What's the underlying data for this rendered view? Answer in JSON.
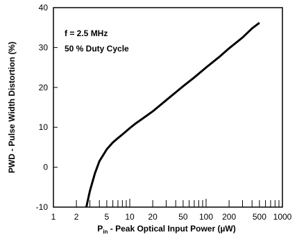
{
  "chart_data": {
    "type": "line",
    "title": "",
    "xlabel_main": "P",
    "xlabel_sub": "in",
    "xlabel_rest": " - Peak Optical Input Power (µW)",
    "ylabel": "PWD - Pulse Width Distortion (%)",
    "x_scale": "log",
    "xlim": [
      1,
      1000
    ],
    "ylim": [
      -10,
      40
    ],
    "x_ticks": [
      1,
      2,
      5,
      10,
      20,
      50,
      100,
      200,
      500,
      1000
    ],
    "x_tick_labels": [
      "1",
      "2",
      "5",
      "10",
      "20",
      "50",
      "100",
      "200",
      "500",
      "1000"
    ],
    "y_ticks": [
      -10,
      0,
      10,
      20,
      30,
      40
    ],
    "y_tick_labels": [
      "-10",
      "0",
      "10",
      "20",
      "30",
      "40"
    ],
    "annotations": [
      "f = 2.5 MHz",
      "50 % Duty Cycle"
    ],
    "grid": false,
    "series": [
      {
        "color": "#000000",
        "x": [
          2.7,
          3,
          3.5,
          4,
          5,
          6,
          7,
          8,
          10,
          12,
          15,
          20,
          30,
          50,
          70,
          100,
          150,
          200,
          300,
          400,
          500
        ],
        "y": [
          -10,
          -6,
          -1.5,
          1.5,
          4.5,
          6.2,
          7.3,
          8.2,
          9.8,
          11,
          12.3,
          14,
          16.8,
          20.3,
          22.5,
          25,
          27.7,
          29.8,
          32.5,
          34.8,
          36.2
        ]
      }
    ]
  }
}
